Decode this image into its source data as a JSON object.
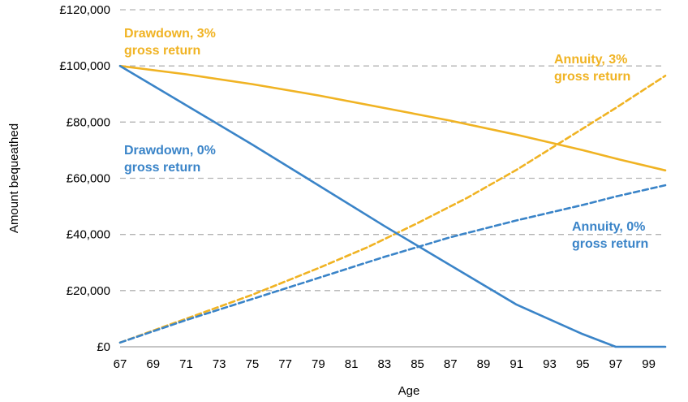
{
  "chart_data": {
    "type": "line",
    "xlabel": "Age",
    "ylabel": "Amount bequeathed",
    "xlim": [
      67,
      100
    ],
    "ylim": [
      0,
      120000
    ],
    "x_ticks": [
      "67",
      "69",
      "71",
      "73",
      "75",
      "77",
      "79",
      "81",
      "83",
      "85",
      "87",
      "89",
      "91",
      "93",
      "95",
      "97",
      "99"
    ],
    "y_ticks": [
      "£0",
      "£20,000",
      "£40,000",
      "£60,000",
      "£80,000",
      "£100,000",
      "£120,000"
    ],
    "grid": "horizontal dashed",
    "colors": {
      "drawdown_3": "#f0b323",
      "annuity_3": "#f0b323",
      "drawdown_0": "#3a84c8",
      "annuity_0": "#3a84c8"
    },
    "series": [
      {
        "key": "drawdown_3",
        "style": "solid",
        "label": "Drawdown, 3% gross return",
        "points": [
          [
            67,
            100000
          ],
          [
            71,
            97000
          ],
          [
            75,
            93500
          ],
          [
            79,
            89500
          ],
          [
            83,
            85000
          ],
          [
            87,
            80500
          ],
          [
            91,
            75500
          ],
          [
            95,
            70000
          ],
          [
            97,
            67000
          ],
          [
            100,
            62800
          ]
        ]
      },
      {
        "key": "annuity_3",
        "style": "dashed",
        "label": "Annuity, 3% gross return",
        "points": [
          [
            67,
            1500
          ],
          [
            71,
            10000
          ],
          [
            75,
            18500
          ],
          [
            79,
            28000
          ],
          [
            82,
            35500
          ],
          [
            85,
            44000
          ],
          [
            88,
            53000
          ],
          [
            91,
            63000
          ],
          [
            94,
            74000
          ],
          [
            97,
            85000
          ],
          [
            100,
            96500
          ]
        ]
      },
      {
        "key": "drawdown_0",
        "style": "solid",
        "label": "Drawdown, 0% gross return",
        "points": [
          [
            67,
            100000
          ],
          [
            71,
            86000
          ],
          [
            75,
            72000
          ],
          [
            79,
            57500
          ],
          [
            83,
            43000
          ],
          [
            87,
            29000
          ],
          [
            91,
            15000
          ],
          [
            95,
            4500
          ],
          [
            97,
            0
          ],
          [
            100,
            0
          ]
        ]
      },
      {
        "key": "annuity_0",
        "style": "dashed",
        "label": "Annuity, 0% gross return",
        "points": [
          [
            67,
            1500
          ],
          [
            71,
            9500
          ],
          [
            75,
            17000
          ],
          [
            79,
            24500
          ],
          [
            83,
            32000
          ],
          [
            87,
            39000
          ],
          [
            91,
            45000
          ],
          [
            95,
            50500
          ],
          [
            97,
            53500
          ],
          [
            100,
            57500
          ]
        ]
      }
    ],
    "annotations": [
      {
        "key": "drawdown_3",
        "line1": "Drawdown, 3%",
        "line2": "gross return",
        "color": "#f0b323"
      },
      {
        "key": "annuity_3",
        "line1": "Annuity, 3%",
        "line2": "gross return",
        "color": "#f0b323"
      },
      {
        "key": "drawdown_0",
        "line1": "Drawdown, 0%",
        "line2": "gross return",
        "color": "#3a84c8"
      },
      {
        "key": "annuity_0",
        "line1": "Annuity, 0%",
        "line2": "gross return",
        "color": "#3a84c8"
      }
    ]
  }
}
